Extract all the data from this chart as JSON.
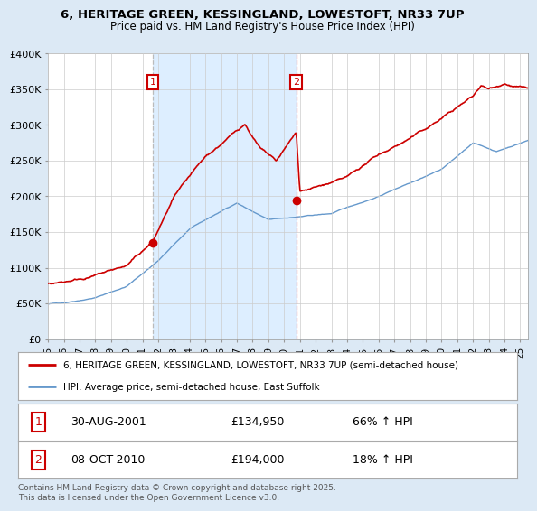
{
  "title_line1": "6, HERITAGE GREEN, KESSINGLAND, LOWESTOFT, NR33 7UP",
  "title_line2": "Price paid vs. HM Land Registry's House Price Index (HPI)",
  "legend_line1": "6, HERITAGE GREEN, KESSINGLAND, LOWESTOFT, NR33 7UP (semi-detached house)",
  "legend_line2": "HPI: Average price, semi-detached house, East Suffolk",
  "footnote": "Contains HM Land Registry data © Crown copyright and database right 2025.\nThis data is licensed under the Open Government Licence v3.0.",
  "property_color": "#cc0000",
  "hpi_color": "#6699cc",
  "shade_color": "#ddeeff",
  "background_color": "#dce9f5",
  "plot_bg_color": "#ffffff",
  "ylim": [
    0,
    400000
  ],
  "yticks": [
    0,
    50000,
    100000,
    150000,
    200000,
    250000,
    300000,
    350000,
    400000
  ],
  "ytick_labels": [
    "£0",
    "£50K",
    "£100K",
    "£150K",
    "£200K",
    "£250K",
    "£300K",
    "£350K",
    "£400K"
  ],
  "marker1": {
    "label": "1",
    "date_str": "30-AUG-2001",
    "price": 134950,
    "price_str": "£134,950",
    "pct": "66%",
    "dir": "↑",
    "x_year": 2001.66,
    "y_val": 134950
  },
  "marker2": {
    "label": "2",
    "date_str": "08-OCT-2010",
    "price": 194000,
    "price_str": "£194,000",
    "pct": "18%",
    "dir": "↑",
    "x_year": 2010.77,
    "y_val": 194000
  },
  "xmin": 1995,
  "xmax": 2025.5,
  "grid_color": "#cccccc",
  "dashed_line1_color": "#bbbbbb",
  "dashed_line2_color": "#ee8888"
}
